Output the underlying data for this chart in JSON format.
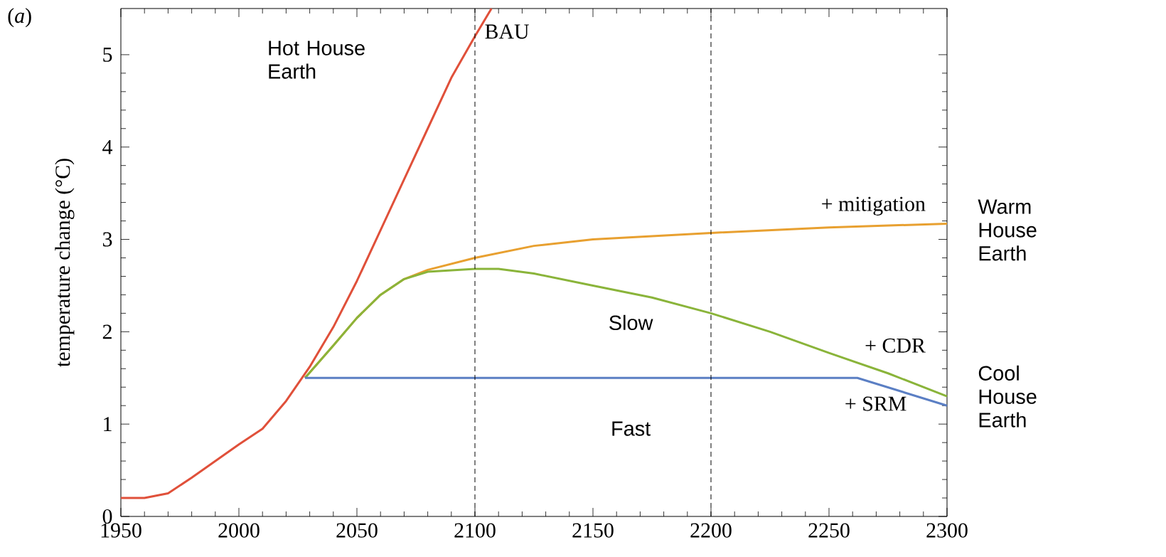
{
  "chart_data": {
    "type": "line",
    "ylabel": "temperature change (°C)",
    "xlim": [
      1950,
      2300
    ],
    "ylim": [
      0,
      5.5
    ],
    "xticks": [
      1950,
      2000,
      2050,
      2100,
      2150,
      2200,
      2250,
      2300
    ],
    "yticks": [
      0,
      1,
      2,
      3,
      4,
      5
    ],
    "line_style": "solid",
    "series": [
      {
        "name": "BAU",
        "color": "#e0503a",
        "x": [
          1950,
          1960,
          1970,
          1980,
          1990,
          2000,
          2010,
          2020,
          2030,
          2040,
          2050,
          2060,
          2070,
          2080,
          2090,
          2100,
          2107
        ],
        "values": [
          0.2,
          0.2,
          0.25,
          0.42,
          0.6,
          0.78,
          0.95,
          1.25,
          1.62,
          2.05,
          2.55,
          3.1,
          3.65,
          4.2,
          4.75,
          5.2,
          5.5
        ]
      },
      {
        "name": "+ mitigation",
        "color": "#e8a030",
        "x": [
          2028,
          2040,
          2050,
          2060,
          2070,
          2080,
          2100,
          2125,
          2150,
          2200,
          2250,
          2300
        ],
        "values": [
          1.5,
          1.85,
          2.15,
          2.4,
          2.57,
          2.67,
          2.8,
          2.93,
          3.0,
          3.07,
          3.13,
          3.17
        ]
      },
      {
        "name": "+ CDR",
        "color": "#8ab43a",
        "x": [
          2028,
          2040,
          2050,
          2060,
          2070,
          2080,
          2100,
          2110,
          2125,
          2150,
          2175,
          2200,
          2225,
          2250,
          2275,
          2300
        ],
        "values": [
          1.5,
          1.85,
          2.15,
          2.4,
          2.57,
          2.65,
          2.68,
          2.68,
          2.63,
          2.5,
          2.37,
          2.2,
          2.0,
          1.77,
          1.55,
          1.3
        ]
      },
      {
        "name": "+ SRM",
        "color": "#5b7fc4",
        "x": [
          2028,
          2262,
          2300
        ],
        "values": [
          1.5,
          1.5,
          1.2
        ]
      }
    ],
    "ref_lines": [
      {
        "axis": "x",
        "value": 2100,
        "color": "#000000",
        "line_style": "dashed"
      },
      {
        "axis": "x",
        "value": 2200,
        "color": "#000000",
        "line_style": "dashed"
      }
    ],
    "annotations": [
      "(*a*)",
      "Hot House Earth",
      "Warm House Earth",
      "Cool House Earth",
      "Slow",
      "Fast"
    ]
  }
}
